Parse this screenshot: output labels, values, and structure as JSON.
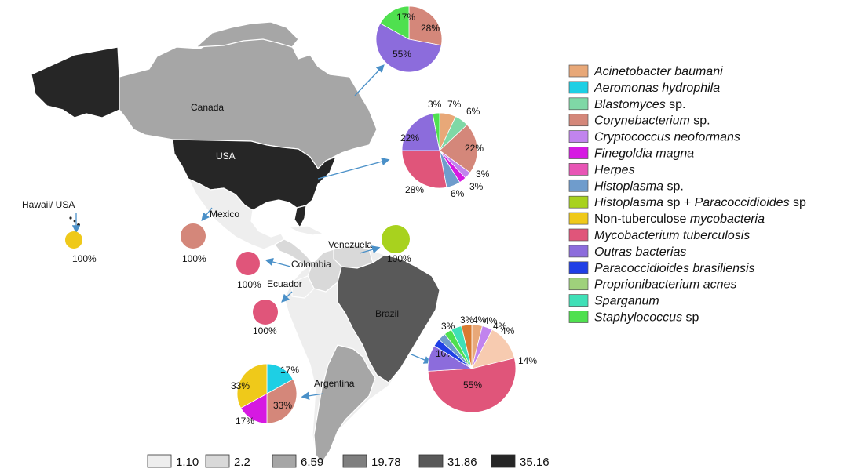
{
  "colors": {
    "arrow": "#4a90c8",
    "border": "#ffffff",
    "land_empty": "#ffffff",
    "shade_1": "#eeeeee",
    "shade_2": "#d9d9d9",
    "shade_3": "#a6a6a6",
    "shade_4": "#7f7f7f",
    "shade_5": "#595959",
    "shade_6": "#262626"
  },
  "countries": {
    "canada": "Canada",
    "usa": "USA",
    "hawaii": "Hawaii/ USA",
    "mexico": "Mexico",
    "venezuela": "Venezuela",
    "colombia": "Colombia",
    "ecuador": "Ecuador",
    "brazil": "Brazil",
    "argentina": "Argentina"
  },
  "scale": [
    "1.10",
    "2.2",
    "6.59",
    "19.78",
    "31.86",
    "35.16"
  ],
  "legend": [
    {
      "parts": [
        {
          "t": "Acinetobacter baumani",
          "i": true
        }
      ],
      "color": "#e8a878"
    },
    {
      "parts": [
        {
          "t": "Aeromonas hydrophila",
          "i": true
        }
      ],
      "color": "#1ecfe4"
    },
    {
      "parts": [
        {
          "t": "Blastomyces",
          "i": true
        },
        {
          "t": " sp.",
          "i": false
        }
      ],
      "color": "#7fd8a6"
    },
    {
      "parts": [
        {
          "t": "Corynebacterium",
          "i": true
        },
        {
          "t": " sp.",
          "i": false
        }
      ],
      "color": "#d4877a"
    },
    {
      "parts": [
        {
          "t": "Cryptococcus neoformans",
          "i": true
        }
      ],
      "color": "#c184ee"
    },
    {
      "parts": [
        {
          "t": "Finegoldia magna",
          "i": true
        }
      ],
      "color": "#d619e2"
    },
    {
      "parts": [
        {
          "t": "Herpes",
          "i": true
        }
      ],
      "color": "#e855b5"
    },
    {
      "parts": [
        {
          "t": "Histoplasma",
          "i": true
        },
        {
          "t": " sp.",
          "i": false
        }
      ],
      "color": "#6f9ccc"
    },
    {
      "parts": [
        {
          "t": "Histoplasma",
          "i": true
        },
        {
          "t": " sp + ",
          "i": false
        },
        {
          "t": "Paracoccidioides",
          "i": true
        },
        {
          "t": " sp",
          "i": false
        }
      ],
      "color": "#a8d21e"
    },
    {
      "parts": [
        {
          "t": "Non-tuberculose ",
          "i": false
        },
        {
          "t": "mycobacteria",
          "i": true
        }
      ],
      "color": "#efc91a"
    },
    {
      "parts": [
        {
          "t": "Mycobacterium tuberculosis",
          "i": true
        }
      ],
      "color": "#e0557a"
    },
    {
      "parts": [
        {
          "t": "Outras bacterias",
          "i": true
        }
      ],
      "color": "#8c6cdc"
    },
    {
      "parts": [
        {
          "t": "Paracoccidioides brasiliensis",
          "i": true
        }
      ],
      "color": "#1f3fe6"
    },
    {
      "parts": [
        {
          "t": "Proprionibacterium acnes",
          "i": true
        }
      ],
      "color": "#9fd17b"
    },
    {
      "parts": [
        {
          "t": "Sparganum",
          "i": true
        }
      ],
      "color": "#3fe0b7"
    },
    {
      "parts": [
        {
          "t": "Staphylococcus",
          "i": true
        },
        {
          "t": " sp",
          "i": false
        }
      ],
      "color": "#4fe04f"
    }
  ],
  "pies": [
    {
      "id": "canada",
      "slices": [
        {
          "v": 28,
          "c": "#d4877a",
          "label": "28%"
        },
        {
          "v": 55,
          "c": "#8c6cdc",
          "label": "55%"
        },
        {
          "v": 17,
          "c": "#4fe04f",
          "label": "17%"
        }
      ]
    },
    {
      "id": "usa",
      "slices": [
        {
          "v": 7,
          "c": "#e8a878",
          "label": "7%"
        },
        {
          "v": 6,
          "c": "#7fd8a6",
          "label": "6%"
        },
        {
          "v": 22,
          "c": "#d4877a",
          "label": "22%"
        },
        {
          "v": 3,
          "c": "#c184ee",
          "label": "3%"
        },
        {
          "v": 3,
          "c": "#d619e2",
          "label": "3%"
        },
        {
          "v": 6,
          "c": "#6f9ccc",
          "label": "6%"
        },
        {
          "v": 28,
          "c": "#e0557a",
          "label": "28%"
        },
        {
          "v": 22,
          "c": "#8c6cdc",
          "label": "22%"
        },
        {
          "v": 3,
          "c": "#4fe04f",
          "label": "3%"
        }
      ]
    },
    {
      "id": "hawaii",
      "slices": [
        {
          "v": 100,
          "c": "#efc91a",
          "label": "100%"
        }
      ]
    },
    {
      "id": "mexico",
      "slices": [
        {
          "v": 100,
          "c": "#d4877a",
          "label": "100%"
        }
      ]
    },
    {
      "id": "venezuela",
      "slices": [
        {
          "v": 100,
          "c": "#a8d21e",
          "label": "100%"
        }
      ]
    },
    {
      "id": "colombia",
      "slices": [
        {
          "v": 100,
          "c": "#e0557a",
          "label": "100%"
        }
      ]
    },
    {
      "id": "ecuador",
      "slices": [
        {
          "v": 100,
          "c": "#e0557a",
          "label": "100%"
        }
      ]
    },
    {
      "id": "argentina",
      "slices": [
        {
          "v": 17,
          "c": "#1ecfe4",
          "label": "17%"
        },
        {
          "v": 33,
          "c": "#d4877a",
          "label": "33%"
        },
        {
          "v": 17,
          "c": "#d619e2",
          "label": "17%"
        },
        {
          "v": 33,
          "c": "#efc91a",
          "label": "33%"
        }
      ]
    },
    {
      "id": "brazil",
      "slices": [
        {
          "v": 4,
          "c": "#e8a878",
          "label": "4%"
        },
        {
          "v": 4,
          "c": "#c184ee",
          "label": "4%"
        },
        {
          "v": 14,
          "c": "#f7cbb0",
          "label": "14%"
        },
        {
          "v": 55,
          "c": "#e0557a",
          "label": "55%"
        },
        {
          "v": 10,
          "c": "#8c6cdc",
          "label": "10%"
        },
        {
          "v": 3,
          "c": "#1f3fe6",
          "label": "3%"
        },
        {
          "v": 3,
          "c": "#6f9ccc",
          "label": "3%"
        },
        {
          "v": 3,
          "c": "#4fe04f",
          "label": "3%"
        },
        {
          "v": 4,
          "c": "#3fe0b7",
          "label": "4%"
        },
        {
          "v": 4,
          "c": "#d97a30",
          "label": "4%"
        }
      ]
    }
  ]
}
